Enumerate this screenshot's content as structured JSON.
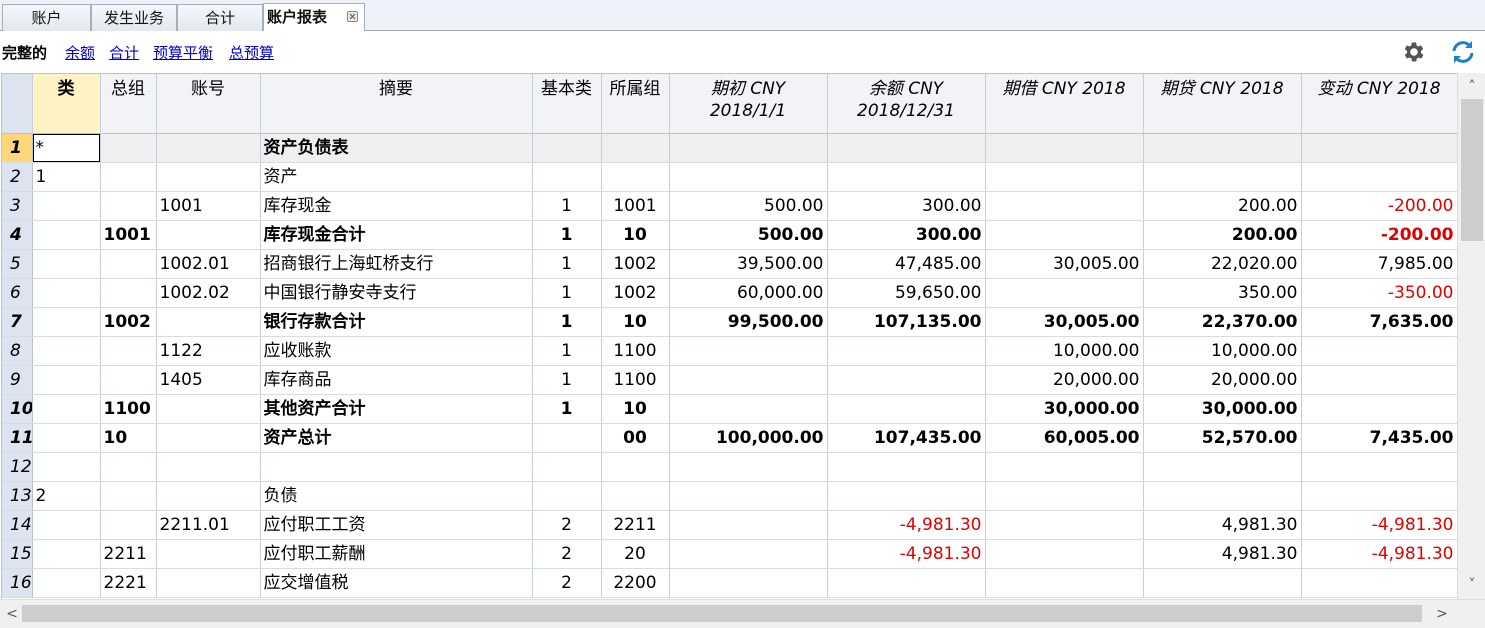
{
  "tabs": [
    {
      "label": "账户"
    },
    {
      "label": "发生业务"
    },
    {
      "label": "合计"
    },
    {
      "label": "账户报表"
    }
  ],
  "views": {
    "current": "完整的",
    "links": [
      "余额",
      "合计",
      "预算平衡",
      "总预算"
    ]
  },
  "icons": {
    "settings": "gear-icon",
    "refresh": "refresh-icon"
  },
  "colors": {
    "negative": "#e00000",
    "link": "#0000cc",
    "row_header": "#dce4ef",
    "active_row": "#ffd77a"
  },
  "columns": [
    {
      "line1": "类",
      "line2": ""
    },
    {
      "line1": "总组",
      "line2": ""
    },
    {
      "line1": "账号",
      "line2": ""
    },
    {
      "line1": "摘要",
      "line2": ""
    },
    {
      "line1": "基本类",
      "line2": ""
    },
    {
      "line1": "所属组",
      "line2": ""
    },
    {
      "line1": "期初 CNY",
      "line2": "2018/1/1"
    },
    {
      "line1": "余额 CNY",
      "line2": "2018/12/31"
    },
    {
      "line1": "期借 CNY 2018",
      "line2": ""
    },
    {
      "line1": "期贷 CNY 2018",
      "line2": ""
    },
    {
      "line1": "变动 CNY 2018",
      "line2": ""
    }
  ],
  "rows": [
    {
      "n": "1",
      "cls": "*",
      "grp": "",
      "acc": "",
      "desc": "资产负债表",
      "bclass": "",
      "gr": "",
      "open": "",
      "bal": "",
      "debit": "",
      "credit": "",
      "change": ""
    },
    {
      "n": "2",
      "cls": "1",
      "grp": "",
      "acc": "",
      "desc": "资产",
      "bclass": "",
      "gr": "",
      "open": "",
      "bal": "",
      "debit": "",
      "credit": "",
      "change": ""
    },
    {
      "n": "3",
      "cls": "",
      "grp": "",
      "acc": "1001",
      "desc": "库存现金",
      "bclass": "1",
      "gr": "1001",
      "open": "500.00",
      "bal": "300.00",
      "debit": "",
      "credit": "200.00",
      "change": "-200.00"
    },
    {
      "n": "4",
      "cls": "",
      "grp": "1001",
      "acc": "",
      "desc": "库存现金合计",
      "bclass": "1",
      "gr": "10",
      "open": "500.00",
      "bal": "300.00",
      "debit": "",
      "credit": "200.00",
      "change": "-200.00"
    },
    {
      "n": "5",
      "cls": "",
      "grp": "",
      "acc": "1002.01",
      "desc": "招商银行上海虹桥支行",
      "bclass": "1",
      "gr": "1002",
      "open": "39,500.00",
      "bal": "47,485.00",
      "debit": "30,005.00",
      "credit": "22,020.00",
      "change": "7,985.00"
    },
    {
      "n": "6",
      "cls": "",
      "grp": "",
      "acc": "1002.02",
      "desc": "中国银行静安寺支行",
      "bclass": "1",
      "gr": "1002",
      "open": "60,000.00",
      "bal": "59,650.00",
      "debit": "",
      "credit": "350.00",
      "change": "-350.00"
    },
    {
      "n": "7",
      "cls": "",
      "grp": "1002",
      "acc": "",
      "desc": "银行存款合计",
      "bclass": "1",
      "gr": "10",
      "open": "99,500.00",
      "bal": "107,135.00",
      "debit": "30,005.00",
      "credit": "22,370.00",
      "change": "7,635.00"
    },
    {
      "n": "8",
      "cls": "",
      "grp": "",
      "acc": "1122",
      "desc": "应收账款",
      "bclass": "1",
      "gr": "1100",
      "open": "",
      "bal": "",
      "debit": "10,000.00",
      "credit": "10,000.00",
      "change": ""
    },
    {
      "n": "9",
      "cls": "",
      "grp": "",
      "acc": "1405",
      "desc": "库存商品",
      "bclass": "1",
      "gr": "1100",
      "open": "",
      "bal": "",
      "debit": "20,000.00",
      "credit": "20,000.00",
      "change": ""
    },
    {
      "n": "10",
      "cls": "",
      "grp": "1100",
      "acc": "",
      "desc": "其他资产合计",
      "bclass": "1",
      "gr": "10",
      "open": "",
      "bal": "",
      "debit": "30,000.00",
      "credit": "30,000.00",
      "change": ""
    },
    {
      "n": "11",
      "cls": "",
      "grp": "10",
      "acc": "",
      "desc": "资产总计",
      "bclass": "",
      "gr": "00",
      "open": "100,000.00",
      "bal": "107,435.00",
      "debit": "60,005.00",
      "credit": "52,570.00",
      "change": "7,435.00"
    },
    {
      "n": "12",
      "cls": "",
      "grp": "",
      "acc": "",
      "desc": "",
      "bclass": "",
      "gr": "",
      "open": "",
      "bal": "",
      "debit": "",
      "credit": "",
      "change": ""
    },
    {
      "n": "13",
      "cls": "2",
      "grp": "",
      "acc": "",
      "desc": "负债",
      "bclass": "",
      "gr": "",
      "open": "",
      "bal": "",
      "debit": "",
      "credit": "",
      "change": ""
    },
    {
      "n": "14",
      "cls": "",
      "grp": "",
      "acc": "2211.01",
      "desc": "应付职工工资",
      "bclass": "2",
      "gr": "2211",
      "open": "",
      "bal": "-4,981.30",
      "debit": "",
      "credit": "4,981.30",
      "change": "-4,981.30"
    },
    {
      "n": "15",
      "cls": "",
      "grp": "2211",
      "acc": "",
      "desc": "应付职工薪酬",
      "bclass": "2",
      "gr": "20",
      "open": "",
      "bal": "-4,981.30",
      "debit": "",
      "credit": "4,981.30",
      "change": "-4,981.30"
    },
    {
      "n": "16",
      "cls": "",
      "grp": "2221",
      "acc": "",
      "desc": "应交增值税",
      "bclass": "2",
      "gr": "2200",
      "open": "",
      "bal": "",
      "debit": "",
      "credit": "",
      "change": ""
    }
  ],
  "bold_rows": [
    "4",
    "7",
    "10",
    "11"
  ]
}
